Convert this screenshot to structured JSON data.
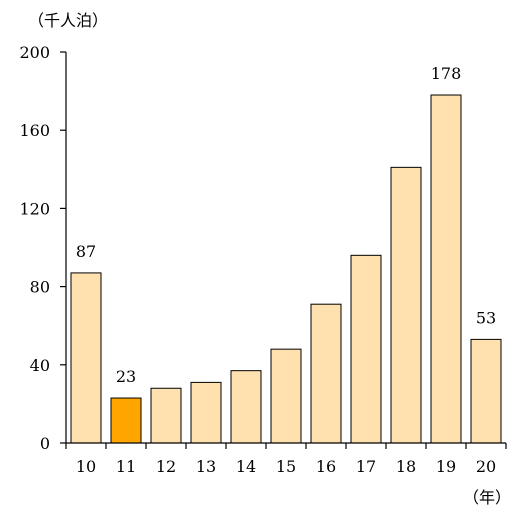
{
  "chart_data": {
    "type": "bar",
    "title": "",
    "ylabel": "（千人泊）",
    "xlabel": "（年）",
    "categories": [
      "10",
      "11",
      "12",
      "13",
      "14",
      "15",
      "16",
      "17",
      "18",
      "19",
      "20"
    ],
    "values": [
      87,
      23,
      28,
      31,
      37,
      48,
      71,
      96,
      141,
      178,
      53
    ],
    "data_labels": [
      "87",
      "23",
      null,
      null,
      null,
      null,
      null,
      null,
      null,
      "178",
      "53"
    ],
    "highlight_category": "11",
    "ylim": [
      0,
      200
    ],
    "yticks": [
      "0",
      "40",
      "80",
      "120",
      "160",
      "200"
    ],
    "ytick_values": [
      0,
      40,
      80,
      120,
      160,
      200
    ],
    "grid": false,
    "legend": "none",
    "colors": {
      "bar": "#FFE1B0",
      "highlight": "#FFA500",
      "outline": "#000000"
    }
  }
}
